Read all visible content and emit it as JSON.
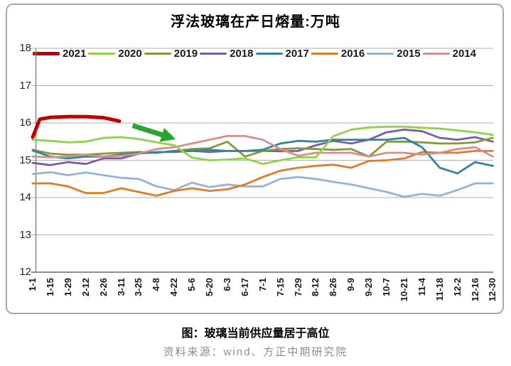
{
  "title": "浮法玻璃在产日熔量:万吨",
  "caption": "图：玻璃当前供应量居于高位",
  "source": "资料来源：wind、方正中期研究院",
  "chart_data": {
    "type": "line",
    "title": "浮法玻璃在产日熔量:万吨",
    "xlabel": "",
    "ylabel": "",
    "ylim": [
      12,
      18
    ],
    "yticks": [
      12,
      13,
      14,
      15,
      16,
      17,
      18
    ],
    "grid": true,
    "legend_position": "top",
    "categories": [
      "1-1",
      "1-15",
      "1-29",
      "2-12",
      "2-26",
      "3-11",
      "3-25",
      "4-8",
      "4-22",
      "5-6",
      "5-20",
      "6-3",
      "6-17",
      "7-1",
      "7-15",
      "7-29",
      "8-12",
      "8-26",
      "9-9",
      "9-23",
      "10-7",
      "10-21",
      "11-4",
      "11-18",
      "12-2",
      "12-16",
      "12-30"
    ],
    "series": [
      {
        "name": "2021",
        "color": "#C00000",
        "line_width": 5,
        "z": 8,
        "x": [
          0,
          0.4,
          1,
          2,
          3,
          4,
          4.9
        ],
        "values": [
          15.62,
          16.1,
          16.15,
          16.17,
          16.17,
          16.14,
          16.05
        ]
      },
      {
        "name": "2020",
        "color": "#92D050",
        "line_width": 2.8,
        "z": 7,
        "values": [
          15.55,
          15.52,
          15.48,
          15.5,
          15.6,
          15.62,
          15.57,
          15.48,
          15.4,
          15.07,
          15.0,
          15.02,
          15.05,
          14.9,
          15.0,
          15.08,
          15.08,
          15.65,
          15.82,
          15.88,
          15.9,
          15.9,
          15.87,
          15.85,
          15.8,
          15.75,
          15.68
        ]
      },
      {
        "name": "2019",
        "color": "#86983E",
        "line_width": 2.8,
        "z": 4,
        "values": [
          15.28,
          15.18,
          15.15,
          15.15,
          15.18,
          15.2,
          15.22,
          15.2,
          15.25,
          15.3,
          15.32,
          15.5,
          15.1,
          15.25,
          15.3,
          15.32,
          15.3,
          15.28,
          15.3,
          15.1,
          15.5,
          15.5,
          15.48,
          15.45,
          15.45,
          15.48,
          15.6
        ]
      },
      {
        "name": "2018",
        "color": "#7A5DA8",
        "line_width": 2.8,
        "z": 3,
        "values": [
          14.93,
          14.87,
          14.95,
          14.9,
          15.05,
          15.05,
          15.18,
          15.22,
          15.22,
          15.25,
          15.22,
          15.25,
          15.25,
          15.25,
          15.24,
          15.25,
          15.4,
          15.52,
          15.45,
          15.55,
          15.75,
          15.82,
          15.78,
          15.6,
          15.55,
          15.62,
          15.5
        ]
      },
      {
        "name": "2017",
        "color": "#31859C",
        "line_width": 2.8,
        "z": 5,
        "values": [
          15.26,
          15.1,
          15.05,
          15.1,
          15.1,
          15.15,
          15.2,
          15.2,
          15.25,
          15.25,
          15.28,
          15.25,
          15.25,
          15.28,
          15.45,
          15.52,
          15.5,
          15.55,
          15.55,
          15.55,
          15.55,
          15.6,
          15.35,
          14.8,
          14.65,
          14.95,
          14.85
        ]
      },
      {
        "name": "2016",
        "color": "#E07B28",
        "line_width": 2.8,
        "z": 2,
        "values": [
          14.38,
          14.38,
          14.3,
          14.12,
          14.12,
          14.25,
          14.15,
          14.05,
          14.18,
          14.25,
          14.18,
          14.22,
          14.35,
          14.55,
          14.72,
          14.8,
          14.85,
          14.88,
          14.8,
          14.98,
          15.0,
          15.05,
          15.22,
          15.2,
          15.2,
          15.25,
          15.25
        ]
      },
      {
        "name": "2015",
        "color": "#95B3D7",
        "line_width": 2.8,
        "z": 1,
        "values": [
          14.63,
          14.68,
          14.6,
          14.67,
          14.6,
          14.53,
          14.5,
          14.3,
          14.2,
          14.4,
          14.28,
          14.35,
          14.3,
          14.3,
          14.5,
          14.55,
          14.5,
          14.42,
          14.35,
          14.25,
          14.15,
          14.02,
          14.1,
          14.05,
          14.2,
          14.38,
          14.38
        ]
      },
      {
        "name": "2014",
        "color": "#D28F8D",
        "line_width": 2.8,
        "z": 6,
        "values": [
          15.1,
          15.08,
          15.1,
          15.15,
          15.1,
          15.12,
          15.18,
          15.3,
          15.35,
          15.45,
          15.55,
          15.65,
          15.65,
          15.55,
          15.3,
          15.12,
          15.2,
          15.2,
          15.2,
          15.1,
          15.2,
          15.2,
          15.15,
          15.2,
          15.3,
          15.35,
          15.1
        ]
      }
    ],
    "annotation": {
      "type": "arrow",
      "color": "#2AA52D",
      "from_x": 5.65,
      "from_y": 15.93,
      "to_x": 7.85,
      "to_y": 15.6
    }
  }
}
